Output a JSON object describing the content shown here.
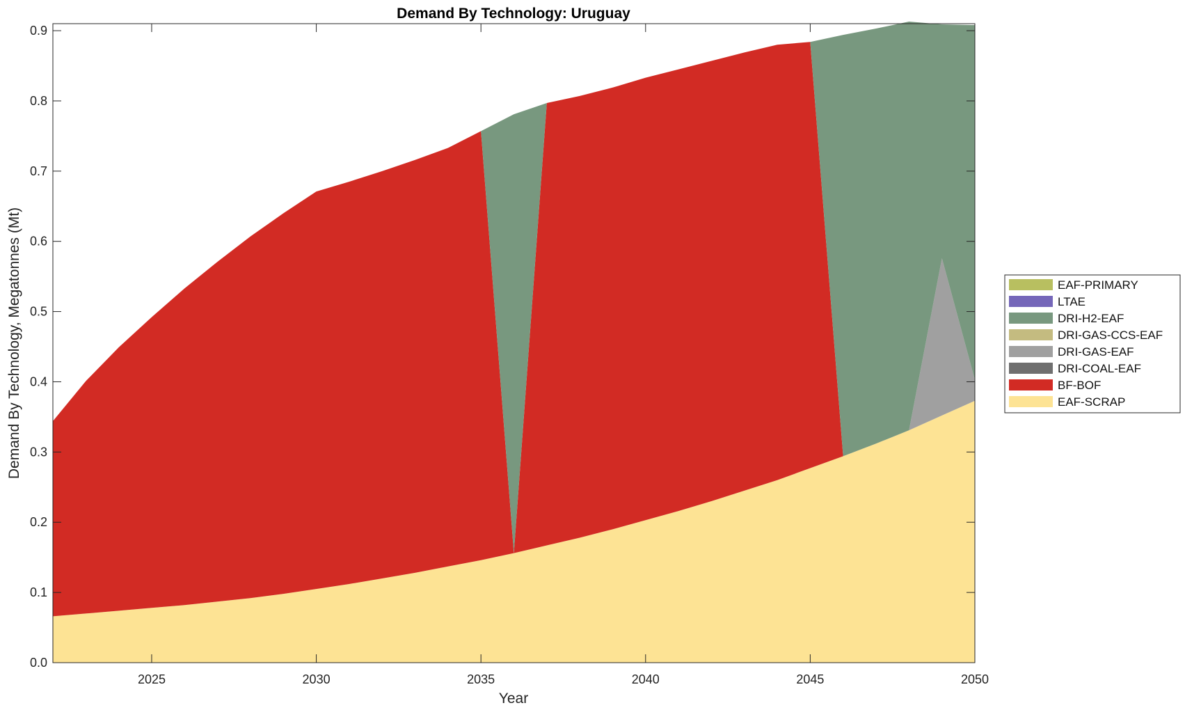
{
  "chart_data": {
    "type": "area",
    "stacked": true,
    "title": "Demand By Technology: Uruguay",
    "xlabel": "Year",
    "ylabel": "Demand By Technology, Megatonnes (Mt)",
    "xlim": [
      2022,
      2050
    ],
    "ylim": [
      0,
      0.91
    ],
    "xticks": [
      "2025",
      "2030",
      "2035",
      "2040",
      "2045",
      "2050"
    ],
    "xtick_values": [
      2025,
      2030,
      2035,
      2040,
      2045,
      2050
    ],
    "yticks": [
      "0.0",
      "0.1",
      "0.2",
      "0.3",
      "0.4",
      "0.5",
      "0.6",
      "0.7",
      "0.8",
      "0.9"
    ],
    "ytick_values": [
      0,
      0.1,
      0.2,
      0.3,
      0.4,
      0.5,
      0.6,
      0.7,
      0.8,
      0.9
    ],
    "grid": false,
    "legend_position": "right",
    "x": [
      2022,
      2023,
      2024,
      2025,
      2026,
      2027,
      2028,
      2029,
      2030,
      2031,
      2032,
      2033,
      2034,
      2035,
      2036,
      2037,
      2038,
      2039,
      2040,
      2041,
      2042,
      2043,
      2044,
      2045,
      2046,
      2047,
      2048,
      2049,
      2050
    ],
    "series": [
      {
        "name": "EAF-SCRAP",
        "color": "#fde394",
        "values": [
          0.066,
          0.07,
          0.074,
          0.078,
          0.082,
          0.087,
          0.092,
          0.098,
          0.105,
          0.112,
          0.12,
          0.128,
          0.137,
          0.146,
          0.156,
          0.167,
          0.178,
          0.19,
          0.203,
          0.216,
          0.23,
          0.245,
          0.26,
          0.277,
          0.294,
          0.312,
          0.331,
          0.352,
          0.373
        ]
      },
      {
        "name": "BF-BOF",
        "color": "#d22b24",
        "values": [
          0.278,
          0.331,
          0.375,
          0.414,
          0.451,
          0.484,
          0.515,
          0.542,
          0.566,
          0.573,
          0.58,
          0.588,
          0.596,
          0.611,
          0.0,
          0.63,
          0.629,
          0.629,
          0.63,
          0.629,
          0.627,
          0.624,
          0.62,
          0.607,
          0.0,
          0.0,
          0.0,
          0.0,
          0.0
        ]
      },
      {
        "name": "DRI-COAL-EAF",
        "color": "#6f6f6f",
        "values": [
          0,
          0,
          0,
          0,
          0,
          0,
          0,
          0,
          0,
          0,
          0,
          0,
          0,
          0,
          0,
          0,
          0,
          0,
          0,
          0,
          0,
          0,
          0,
          0,
          0,
          0,
          0,
          0,
          0
        ]
      },
      {
        "name": "DRI-GAS-EAF",
        "color": "#a0a0a0",
        "values": [
          0,
          0,
          0,
          0,
          0,
          0,
          0,
          0,
          0,
          0,
          0,
          0,
          0,
          0,
          0,
          0,
          0,
          0,
          0,
          0,
          0,
          0,
          0,
          0,
          0,
          0,
          0,
          0.224,
          0.03
        ]
      },
      {
        "name": "DRI-GAS-CCS-EAF",
        "color": "#c4bb80",
        "values": [
          0,
          0,
          0,
          0,
          0,
          0,
          0,
          0,
          0,
          0,
          0,
          0,
          0,
          0,
          0,
          0,
          0,
          0,
          0,
          0,
          0,
          0,
          0,
          0,
          0,
          0,
          0,
          0,
          0
        ]
      },
      {
        "name": "DRI-H2-EAF",
        "color": "#78987f",
        "values": [
          0,
          0,
          0,
          0,
          0,
          0,
          0,
          0,
          0,
          0,
          0,
          0,
          0,
          0,
          0.625,
          0.0,
          0,
          0,
          0,
          0,
          0,
          0,
          0,
          0.0,
          0.6,
          0.591,
          0.582,
          0.333,
          0.505
        ]
      },
      {
        "name": "LTAE",
        "color": "#7567b9",
        "values": [
          0,
          0,
          0,
          0,
          0,
          0,
          0,
          0,
          0,
          0,
          0,
          0,
          0,
          0,
          0,
          0,
          0,
          0,
          0,
          0,
          0,
          0,
          0,
          0,
          0,
          0,
          0,
          0,
          0
        ]
      },
      {
        "name": "EAF-PRIMARY",
        "color": "#b8bf60",
        "values": [
          0,
          0,
          0,
          0,
          0,
          0,
          0,
          0,
          0,
          0,
          0,
          0,
          0,
          0,
          0,
          0,
          0,
          0,
          0,
          0,
          0,
          0,
          0,
          0,
          0,
          0,
          0,
          0,
          0
        ]
      }
    ],
    "legend_order": [
      "EAF-PRIMARY",
      "LTAE",
      "DRI-H2-EAF",
      "DRI-GAS-CCS-EAF",
      "DRI-GAS-EAF",
      "DRI-COAL-EAF",
      "BF-BOF",
      "EAF-SCRAP"
    ]
  }
}
